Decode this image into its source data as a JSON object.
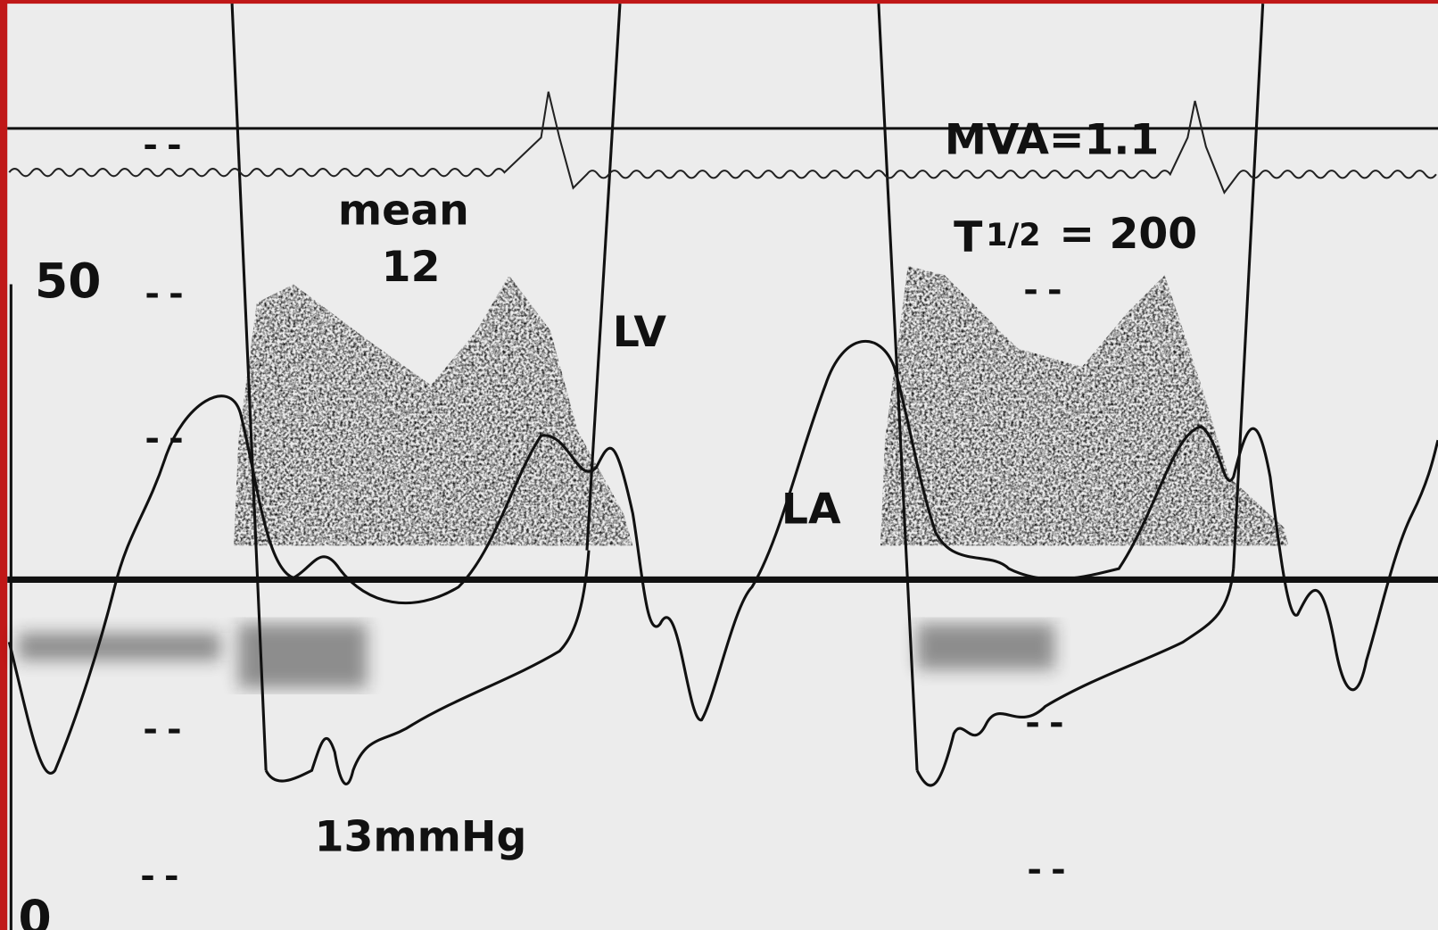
{
  "scale": {
    "top": "50",
    "bottom": "0"
  },
  "labels": {
    "mean": "mean",
    "mean_value": "12",
    "lv": "LV",
    "la": "LA",
    "gradient": "13mmHg",
    "mva": "MVA=1.1",
    "t_symbol": "T",
    "t_fraction": "1/2",
    "t_value": "= 200"
  }
}
